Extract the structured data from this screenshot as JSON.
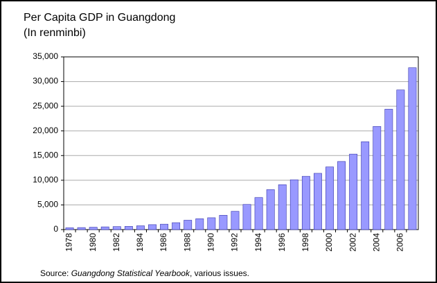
{
  "chart_data": {
    "type": "bar",
    "title": "Per Capita GDP in Guangdong",
    "subtitle": "(In renminbi)",
    "source": {
      "prefix": "Source: ",
      "publication": "Guangdong Statistical Yearbook",
      "suffix": ", various issues."
    },
    "categories": [
      "1978",
      null,
      "1980",
      null,
      "1982",
      null,
      "1984",
      null,
      "1986",
      null,
      "1988",
      null,
      "1990",
      null,
      "1992",
      null,
      "1994",
      null,
      "1996",
      null,
      "1998",
      null,
      "2000",
      null,
      "2002",
      null,
      "2004",
      null,
      "2006",
      null
    ],
    "values": [
      370,
      410,
      480,
      550,
      610,
      650,
      770,
      1000,
      1100,
      1400,
      1900,
      2200,
      2400,
      2900,
      3700,
      5100,
      6500,
      8100,
      9100,
      10100,
      10800,
      11400,
      12700,
      13800,
      15300,
      17800,
      20900,
      24400,
      28300,
      32800
    ],
    "color": "#9999ff",
    "ylim": [
      0,
      35000
    ],
    "yticks": [
      0,
      {
        "value": 5000,
        "label": "5,000"
      },
      {
        "value": 10000,
        "label": "10,000"
      },
      {
        "value": 15000,
        "label": "15,000"
      },
      {
        "value": 20000,
        "label": "20,000"
      },
      {
        "value": 25000,
        "label": "25,000"
      },
      {
        "value": 30000,
        "label": "30,000"
      },
      {
        "value": 35000,
        "label": "35,000"
      }
    ],
    "grid": true
  }
}
